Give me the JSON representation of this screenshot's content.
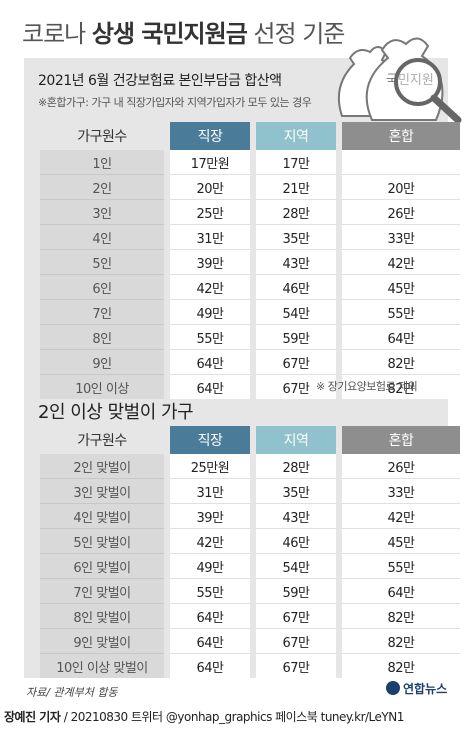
{
  "title": {
    "pre": "코로나 ",
    "highlight": "상생 국민지원금",
    "post": " 선정 기준"
  },
  "illustration": {
    "bag_text": "국민지원",
    "icon": "money-bag-with-magnifier-icon"
  },
  "section1": {
    "subtitle": "2021년 6월 건강보험료 본인부담금 합산액",
    "note": "※혼합가구: 가구 내 직장가입자와 지역가입자가 모두 있는 경우",
    "headers": [
      "가구원수",
      "직장",
      "지역",
      "혼합"
    ],
    "rows": [
      [
        "1인",
        "17만원",
        "17만",
        ""
      ],
      [
        "2인",
        "20만",
        "21만",
        "20만"
      ],
      [
        "3인",
        "25만",
        "28만",
        "26만"
      ],
      [
        "4인",
        "31만",
        "35만",
        "33만"
      ],
      [
        "5인",
        "39만",
        "43만",
        "42만"
      ],
      [
        "6인",
        "42만",
        "46만",
        "45만"
      ],
      [
        "7인",
        "49만",
        "54만",
        "55만"
      ],
      [
        "8인",
        "55만",
        "59만",
        "64만"
      ],
      [
        "9인",
        "64만",
        "67만",
        "82만"
      ],
      [
        "10인 이상",
        "64만",
        "67만",
        "82만"
      ]
    ],
    "footnote": "※ 장기요양보험료 제외"
  },
  "section2": {
    "title": "2인 이상 맞벌이 가구",
    "headers": [
      "가구원수",
      "직장",
      "지역",
      "혼합"
    ],
    "rows": [
      [
        "2인 맞벌이",
        "25만원",
        "28만",
        "26만"
      ],
      [
        "3인 맞벌이",
        "31만",
        "35만",
        "33만"
      ],
      [
        "4인 맞벌이",
        "39만",
        "43만",
        "42만"
      ],
      [
        "5인 맞벌이",
        "42만",
        "46만",
        "45만"
      ],
      [
        "6인 맞벌이",
        "49만",
        "54만",
        "55만"
      ],
      [
        "7인 맞벌이",
        "55만",
        "59만",
        "64만"
      ],
      [
        "8인 맞벌이",
        "64만",
        "67만",
        "82만"
      ],
      [
        "9인 맞벌이",
        "64만",
        "67만",
        "82만"
      ],
      [
        "10인 이상 맞벌이",
        "64만",
        "67만",
        "82만"
      ]
    ]
  },
  "source": "자료/ 관계부처 합동",
  "logo": "연합뉴스",
  "credit": {
    "by": "장예진 기자",
    "rest": " / 20210830  트위터 @yonhap_graphics  페이스북 tuney.kr/LeYN1"
  },
  "colors": {
    "workplace": "#4a7c99",
    "regional": "#8fc2cc",
    "mixed": "#8e8e8e",
    "panel": "#e6e6e6"
  }
}
